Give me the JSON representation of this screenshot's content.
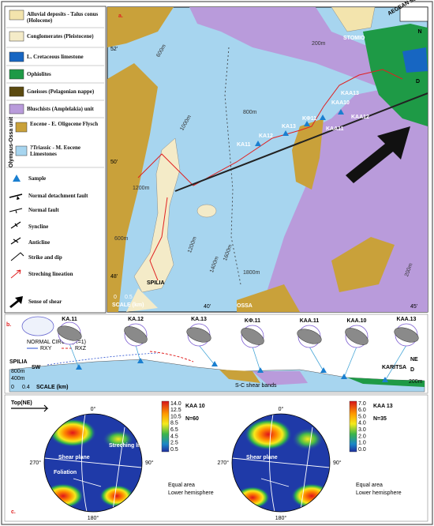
{
  "legend": {
    "units": [
      "Alluvial deposits - Talus conus (Holocene)",
      "Conglomerates (Pleistocene)",
      "L. Cretaceous limestone",
      "Ophiolites",
      "Gneisses (Pelagonian nappe)",
      "Bluschists (Amplelakia) unit",
      "Eocene - E. Oligocene Flysch",
      "?Triassic - M. Eocene Limestones"
    ],
    "group_label": "Olympus-Ossa unit",
    "symbols": [
      "Sample",
      "Normal detachment fault",
      "Normal fault",
      "Syncline",
      "Anticline",
      "Strike and dip",
      "Streching lineation",
      "Sense of shear"
    ]
  },
  "map": {
    "panel": "a.",
    "sea": "AEGEAN SEA",
    "north": "N",
    "places": [
      "STOMIO",
      "SPILIA",
      "OSSA"
    ],
    "section_end": "D",
    "scale": "SCALE (km)",
    "scale_ticks": [
      "0",
      "0.5"
    ],
    "samples": [
      "KA11",
      "KA12",
      "KA13",
      "KΦ11",
      "KAA11",
      "KAA10",
      "KAA13",
      "KAA12"
    ],
    "contours": [
      "200m",
      "600m",
      "800m",
      "1000m",
      "1200m",
      "1400m",
      "1600m",
      "1800m",
      "600m",
      "1200m",
      "200m"
    ],
    "coordinates": [
      "52'",
      "50'",
      "48'",
      "40'",
      "45'"
    ]
  },
  "section": {
    "panel": "b.",
    "circle_label": "NORMAL CIRCLE(R=1)",
    "ratios": [
      "RXY",
      "RXZ"
    ],
    "samples": [
      "KA.11",
      "KA.12",
      "KA.13",
      "KΦ.11",
      "KAA.11",
      "KAA.10",
      "KAA.13"
    ],
    "left_place": "SPILIA",
    "left_dir": "SW",
    "right_dir": "NE",
    "right_place": "KARITSA",
    "end": "D",
    "heights": [
      "800m",
      "400m",
      "200m"
    ],
    "scale_ticks": [
      "0",
      "0.4"
    ],
    "scale": "SCALE (km)",
    "shear": "S-C shear bands"
  },
  "stereonets": {
    "panel": "c.",
    "top": "Top(NE)",
    "nets": [
      {
        "name": "KAA 10",
        "n": "N=60",
        "angles": [
          "0°",
          "90°",
          "180°",
          "270°"
        ],
        "labels": [
          "Shear plane",
          "Foliation",
          "Streching lineation - Ls"
        ],
        "scale": [
          "14.0",
          "12.5",
          "10.5",
          "8.5",
          "6.5",
          "4.5",
          "2.5",
          "0.5"
        ],
        "projection": [
          "Equal area",
          "Lower hemisphere"
        ]
      },
      {
        "name": "KAA 13",
        "n": "N=35",
        "angles": [
          "0°",
          "90°",
          "180°",
          "270°"
        ],
        "labels": [
          "Shear plane"
        ],
        "scale": [
          "7.0",
          "6.0",
          "5.0",
          "4.0",
          "3.0",
          "2.0",
          "1.0",
          "0.0"
        ],
        "projection": [
          "Equal area",
          "Lower hemisphere"
        ]
      }
    ]
  }
}
